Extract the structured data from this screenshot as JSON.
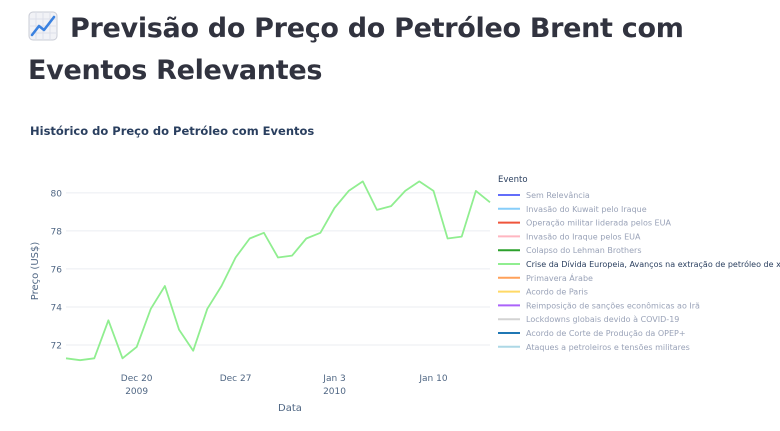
{
  "header": {
    "title": "Previsão do Preço do Petróleo Brent com Eventos Relevantes",
    "icon": "chart-increasing-icon"
  },
  "chart_data": {
    "type": "line",
    "title": "Histórico do Preço do Petróleo com Eventos",
    "xlabel": "Data",
    "ylabel": "Preço (US$)",
    "ylim": [
      71,
      81.2
    ],
    "yticks": [
      72,
      74,
      76,
      78,
      80
    ],
    "xlim": [
      "2009-12-15",
      "2010-01-14"
    ],
    "xticks": [
      {
        "date": "2009-12-20",
        "label": "Dec 20",
        "sublabel": "2009"
      },
      {
        "date": "2009-12-27",
        "label": "Dec 27",
        "sublabel": ""
      },
      {
        "date": "2010-01-03",
        "label": "Jan 3",
        "sublabel": "2010"
      },
      {
        "date": "2010-01-10",
        "label": "Jan 10",
        "sublabel": ""
      }
    ],
    "grid": true,
    "legend_title": "Evento",
    "legend_position": "right",
    "legend": [
      {
        "name": "Sem Relevância",
        "color": "#636efa"
      },
      {
        "name": "Invasão do Kuwait pelo Iraque",
        "color": "#87cefa"
      },
      {
        "name": "Operação militar liderada pelos EUA",
        "color": "#ef553b"
      },
      {
        "name": "Invasão do Iraque pelos EUA",
        "color": "#ffb6c1"
      },
      {
        "name": "Colapso do Lehman Brothers",
        "color": "#2ca02c"
      },
      {
        "name": "Crise da Dívida Europeia, Avanços na extração de petróleo de xisto",
        "color": "#90ee90"
      },
      {
        "name": "Primavera Árabe",
        "color": "#ffa15a"
      },
      {
        "name": "Acordo de Paris",
        "color": "#ffd966"
      },
      {
        "name": "Reimposição de sanções econômicas ao Irã",
        "color": "#ab63fa"
      },
      {
        "name": "Lockdowns globais devido à COVID-19",
        "color": "#d3d3d3"
      },
      {
        "name": "Acordo de Corte de Produção da OPEP+",
        "color": "#1f77b4"
      },
      {
        "name": "Ataques a petroleiros e tensões militares",
        "color": "#add8e6"
      }
    ],
    "active_series_index": 5,
    "series": [
      {
        "name": "Crise da Dívida Europeia, Avanços na extração de petróleo de xisto",
        "color": "#90ee90",
        "x": [
          "2009-12-15",
          "2009-12-16",
          "2009-12-17",
          "2009-12-18",
          "2009-12-19",
          "2009-12-20",
          "2009-12-21",
          "2009-12-22",
          "2009-12-23",
          "2009-12-24",
          "2009-12-25",
          "2009-12-26",
          "2009-12-27",
          "2009-12-28",
          "2009-12-29",
          "2009-12-30",
          "2009-12-31",
          "2010-01-01",
          "2010-01-02",
          "2010-01-03",
          "2010-01-04",
          "2010-01-05",
          "2010-01-06",
          "2010-01-07",
          "2010-01-08",
          "2010-01-09",
          "2010-01-10",
          "2010-01-11",
          "2010-01-12",
          "2010-01-13",
          "2010-01-14"
        ],
        "y": [
          71.3,
          71.2,
          71.3,
          73.3,
          71.3,
          71.9,
          73.9,
          75.1,
          72.8,
          71.7,
          73.9,
          75.1,
          76.6,
          77.6,
          77.9,
          76.6,
          76.7,
          77.6,
          77.9,
          79.2,
          80.1,
          80.6,
          79.1,
          79.3,
          80.1,
          80.6,
          80.1,
          77.6,
          77.7,
          80.1,
          79.5
        ]
      }
    ]
  }
}
